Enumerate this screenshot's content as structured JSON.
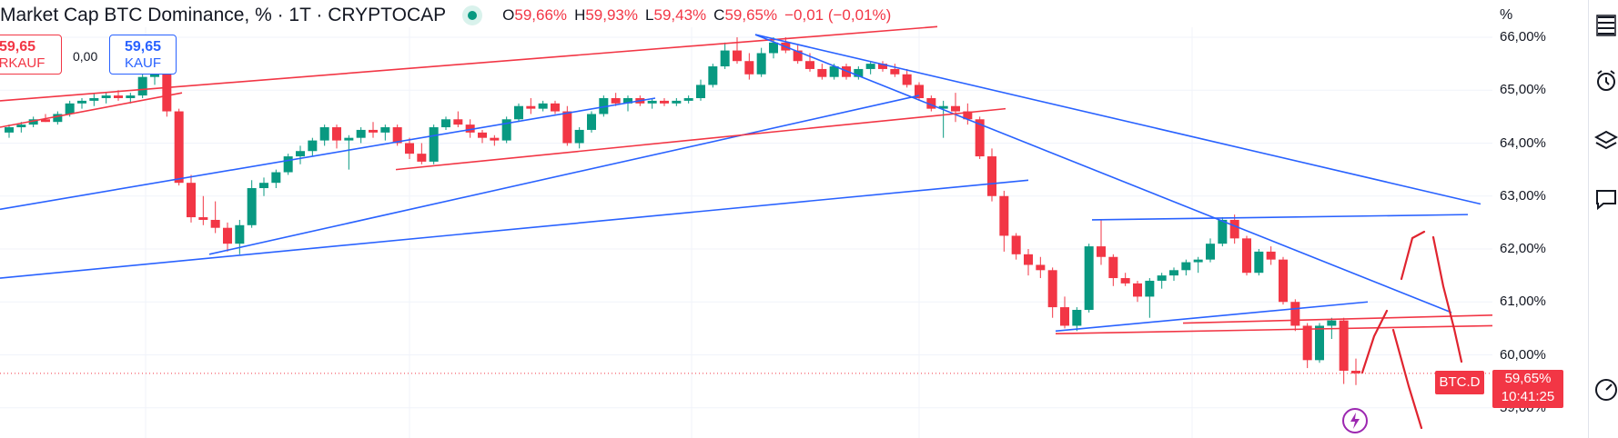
{
  "header": {
    "title": "Market Cap BTC Dominance, % · 1T · CRYPTOCAP",
    "o_key": "O",
    "o_val": "59,66%",
    "h_key": "H",
    "h_val": "59,93%",
    "l_key": "L",
    "l_val": "59,43%",
    "c_key": "C",
    "c_val": "59,65%",
    "change": "−0,01 (−0,01%)"
  },
  "trade": {
    "sell_price": "59,65",
    "sell_label": "ERKAUF",
    "spread": "0,00",
    "buy_price": "59,65",
    "buy_label": "KAUF"
  },
  "axis": {
    "percent_label": "%"
  },
  "price_tag": {
    "symbol": "BTC.D",
    "price": "59,65%",
    "countdown": "10:41:25"
  },
  "colors": {
    "up": "#089981",
    "down": "#f23645",
    "blue_line": "#2962ff",
    "red_line": "#f23645",
    "axis_text": "#131722"
  },
  "icons": [
    "watchlist-icon",
    "alarm-clock-icon",
    "layers-icon",
    "chat-icon",
    "gauge-icon"
  ],
  "chart_data": {
    "type": "candlestick",
    "title": "Market Cap BTC Dominance, % · 1T · CRYPTOCAP",
    "ylabel": "%",
    "ylim": [
      58.6,
      66.05
    ],
    "y_ticks": [
      "66,00%",
      "65,00%",
      "64,00%",
      "63,00%",
      "62,00%",
      "61,00%",
      "60,00%",
      "59,00%"
    ],
    "y_tick_values": [
      66,
      65,
      64,
      63,
      62,
      61,
      60,
      59
    ],
    "last_price": 59.65,
    "candles": [
      [
        64.2,
        64.35,
        64.1,
        64.3
      ],
      [
        64.3,
        64.4,
        64.2,
        64.35
      ],
      [
        64.35,
        64.5,
        64.3,
        64.45
      ],
      [
        64.45,
        64.55,
        64.4,
        64.4
      ],
      [
        64.4,
        64.6,
        64.35,
        64.55
      ],
      [
        64.55,
        64.8,
        64.5,
        64.75
      ],
      [
        64.75,
        64.85,
        64.65,
        64.8
      ],
      [
        64.8,
        64.95,
        64.7,
        64.85
      ],
      [
        64.85,
        64.95,
        64.75,
        64.9
      ],
      [
        64.9,
        65.0,
        64.8,
        64.85
      ],
      [
        64.85,
        64.95,
        64.75,
        64.9
      ],
      [
        64.9,
        65.3,
        64.85,
        65.25
      ],
      [
        65.25,
        65.4,
        65.1,
        65.3
      ],
      [
        65.3,
        65.4,
        64.5,
        64.6
      ],
      [
        64.6,
        64.65,
        63.2,
        63.25
      ],
      [
        63.25,
        63.4,
        62.5,
        62.6
      ],
      [
        62.6,
        63.0,
        62.45,
        62.55
      ],
      [
        62.55,
        62.9,
        62.3,
        62.4
      ],
      [
        62.4,
        62.5,
        61.95,
        62.1
      ],
      [
        62.1,
        62.55,
        61.9,
        62.45
      ],
      [
        62.45,
        63.3,
        62.4,
        63.15
      ],
      [
        63.15,
        63.35,
        63.0,
        63.25
      ],
      [
        63.25,
        63.5,
        63.15,
        63.45
      ],
      [
        63.45,
        63.8,
        63.4,
        63.75
      ],
      [
        63.75,
        63.95,
        63.6,
        63.85
      ],
      [
        63.85,
        64.1,
        63.75,
        64.05
      ],
      [
        64.05,
        64.35,
        63.95,
        64.3
      ],
      [
        64.3,
        64.35,
        63.9,
        64.05
      ],
      [
        64.05,
        64.15,
        63.5,
        64.1
      ],
      [
        64.1,
        64.3,
        64.0,
        64.25
      ],
      [
        64.25,
        64.4,
        64.1,
        64.2
      ],
      [
        64.2,
        64.35,
        64.05,
        64.3
      ],
      [
        64.3,
        64.35,
        63.95,
        64.0
      ],
      [
        64.0,
        64.1,
        63.7,
        63.8
      ],
      [
        63.8,
        64.0,
        63.6,
        63.65
      ],
      [
        63.65,
        64.35,
        63.6,
        64.3
      ],
      [
        64.3,
        64.5,
        64.25,
        64.45
      ],
      [
        64.45,
        64.6,
        64.3,
        64.35
      ],
      [
        64.35,
        64.45,
        64.1,
        64.2
      ],
      [
        64.2,
        64.25,
        64.0,
        64.1
      ],
      [
        64.1,
        64.15,
        63.95,
        64.05
      ],
      [
        64.05,
        64.5,
        64.0,
        64.45
      ],
      [
        64.45,
        64.75,
        64.4,
        64.7
      ],
      [
        64.7,
        64.85,
        64.55,
        64.65
      ],
      [
        64.65,
        64.8,
        64.6,
        64.75
      ],
      [
        64.75,
        64.8,
        64.55,
        64.6
      ],
      [
        64.6,
        64.7,
        63.95,
        64.0
      ],
      [
        64.0,
        64.3,
        63.9,
        64.25
      ],
      [
        64.25,
        64.6,
        64.2,
        64.55
      ],
      [
        64.55,
        64.9,
        64.5,
        64.85
      ],
      [
        64.85,
        64.95,
        64.7,
        64.75
      ],
      [
        64.75,
        64.9,
        64.6,
        64.85
      ],
      [
        64.85,
        64.9,
        64.7,
        64.75
      ],
      [
        64.75,
        64.85,
        64.65,
        64.8
      ],
      [
        64.8,
        64.85,
        64.7,
        64.75
      ],
      [
        64.75,
        64.85,
        64.7,
        64.8
      ],
      [
        64.8,
        64.9,
        64.75,
        64.85
      ],
      [
        64.85,
        65.2,
        64.8,
        65.1
      ],
      [
        65.1,
        65.5,
        65.05,
        65.45
      ],
      [
        65.45,
        65.9,
        65.4,
        65.75
      ],
      [
        65.75,
        66.0,
        65.5,
        65.55
      ],
      [
        65.55,
        65.7,
        65.2,
        65.3
      ],
      [
        65.3,
        65.8,
        65.25,
        65.7
      ],
      [
        65.7,
        66.0,
        65.6,
        65.9
      ],
      [
        65.9,
        66.0,
        65.7,
        65.75
      ],
      [
        65.75,
        65.85,
        65.5,
        65.55
      ],
      [
        65.55,
        65.7,
        65.35,
        65.4
      ],
      [
        65.4,
        65.5,
        65.2,
        65.25
      ],
      [
        65.25,
        65.5,
        65.2,
        65.45
      ],
      [
        65.45,
        65.5,
        65.2,
        65.25
      ],
      [
        65.25,
        65.45,
        65.2,
        65.4
      ],
      [
        65.4,
        65.55,
        65.3,
        65.5
      ],
      [
        65.5,
        65.55,
        65.35,
        65.4
      ],
      [
        65.4,
        65.5,
        65.25,
        65.3
      ],
      [
        65.3,
        65.4,
        65.05,
        65.1
      ],
      [
        65.1,
        65.15,
        64.8,
        64.85
      ],
      [
        64.85,
        64.9,
        64.6,
        64.65
      ],
      [
        64.65,
        64.8,
        64.1,
        64.7
      ],
      [
        64.7,
        64.95,
        64.4,
        64.6
      ],
      [
        64.6,
        64.75,
        64.35,
        64.45
      ],
      [
        64.45,
        64.5,
        63.7,
        63.75
      ],
      [
        63.75,
        63.9,
        62.9,
        63.0
      ],
      [
        63.0,
        63.1,
        61.95,
        62.25
      ],
      [
        62.25,
        62.3,
        61.8,
        61.9
      ],
      [
        61.9,
        62.0,
        61.5,
        61.7
      ],
      [
        61.7,
        61.85,
        61.45,
        61.6
      ],
      [
        61.6,
        61.65,
        60.7,
        60.9
      ],
      [
        60.9,
        61.1,
        60.5,
        60.55
      ],
      [
        60.55,
        60.9,
        60.45,
        60.85
      ],
      [
        60.85,
        62.1,
        60.8,
        62.05
      ],
      [
        62.05,
        62.55,
        61.7,
        61.85
      ],
      [
        61.85,
        61.9,
        61.3,
        61.45
      ],
      [
        61.45,
        61.55,
        61.3,
        61.35
      ],
      [
        61.35,
        61.4,
        61.0,
        61.1
      ],
      [
        61.1,
        61.45,
        60.7,
        61.4
      ],
      [
        61.4,
        61.55,
        61.25,
        61.5
      ],
      [
        61.5,
        61.65,
        61.4,
        61.6
      ],
      [
        61.6,
        61.8,
        61.5,
        61.75
      ],
      [
        61.75,
        61.85,
        61.55,
        61.8
      ],
      [
        61.8,
        62.2,
        61.75,
        62.1
      ],
      [
        62.1,
        62.6,
        62.05,
        62.55
      ],
      [
        62.55,
        62.65,
        62.1,
        62.2
      ],
      [
        62.2,
        62.25,
        61.5,
        61.55
      ],
      [
        61.55,
        62.0,
        61.5,
        61.95
      ],
      [
        61.95,
        62.05,
        61.7,
        61.8
      ],
      [
        61.8,
        61.85,
        60.95,
        61.0
      ],
      [
        61.0,
        61.05,
        60.45,
        60.55
      ],
      [
        60.55,
        60.6,
        59.75,
        59.9
      ],
      [
        59.9,
        60.6,
        59.85,
        60.55
      ],
      [
        60.55,
        60.7,
        60.3,
        60.65
      ],
      [
        60.65,
        60.7,
        59.45,
        59.7
      ],
      [
        59.7,
        59.93,
        59.43,
        59.65
      ]
    ],
    "trendlines": [
      {
        "color": "red",
        "from": [
          0,
          64.8
        ],
        "to": [
          1030,
          66.2
        ]
      },
      {
        "color": "red",
        "from": [
          0,
          64.3
        ],
        "to": [
          200,
          64.95
        ]
      },
      {
        "color": "blue",
        "from": [
          0,
          62.75
        ],
        "to": [
          720,
          64.85
        ]
      },
      {
        "color": "blue",
        "from": [
          0,
          61.45
        ],
        "to": [
          1130,
          63.3
        ]
      },
      {
        "color": "blue",
        "from": [
          230,
          61.9
        ],
        "to": [
          1010,
          64.9
        ]
      },
      {
        "color": "blue",
        "from": [
          830,
          66.05
        ],
        "to": [
          1627,
          62.85
        ]
      },
      {
        "color": "blue",
        "from": [
          830,
          66.05
        ],
        "to": [
          1595,
          60.8
        ]
      },
      {
        "color": "red",
        "from": [
          435,
          63.5
        ],
        "to": [
          1105,
          64.65
        ]
      },
      {
        "color": "blue",
        "from": [
          1200,
          62.55
        ],
        "to": [
          1613,
          62.65
        ]
      },
      {
        "color": "blue",
        "from": [
          1160,
          60.45
        ],
        "to": [
          1503,
          61.0
        ]
      },
      {
        "color": "red",
        "from": [
          1160,
          60.4
        ],
        "to": [
          1640,
          60.55
        ]
      },
      {
        "color": "red",
        "from": [
          1300,
          60.6
        ],
        "to": [
          1640,
          60.75
        ]
      }
    ],
    "freehand": [
      [
        [
          1497,
          410
        ],
        [
          1510,
          370
        ],
        [
          1524,
          342
        ]
      ],
      [
        [
          1540,
          307
        ],
        [
          1552,
          262
        ],
        [
          1565,
          255
        ]
      ],
      [
        [
          1575,
          261
        ],
        [
          1586,
          315
        ],
        [
          1598,
          362
        ],
        [
          1606,
          398
        ]
      ],
      [
        [
          1531,
          363
        ],
        [
          1548,
          425
        ],
        [
          1562,
          471
        ]
      ]
    ]
  }
}
